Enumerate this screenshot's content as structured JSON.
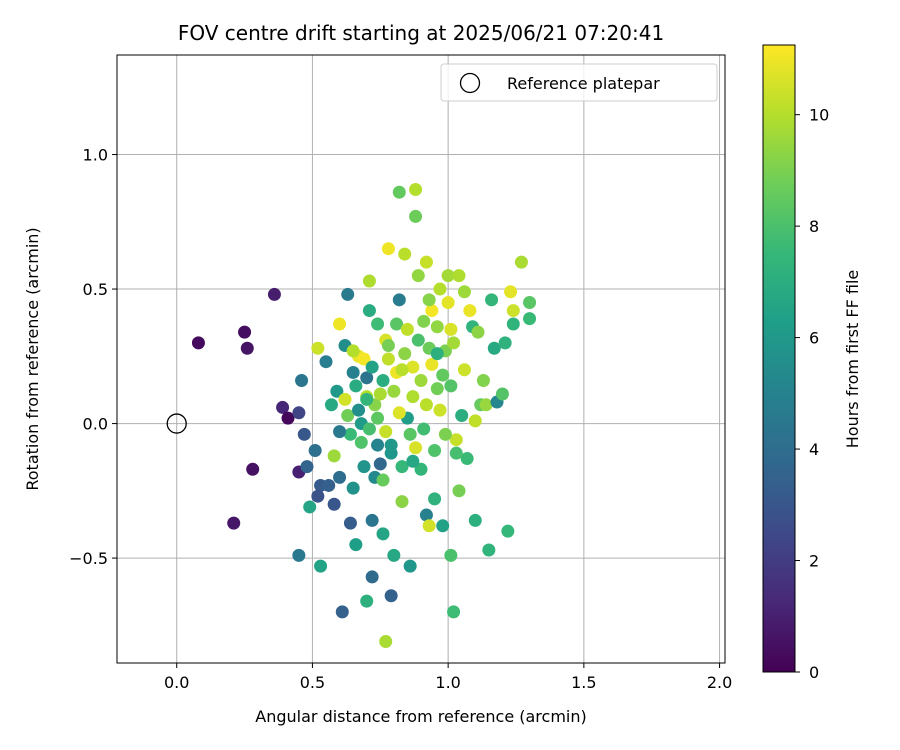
{
  "chart_data": {
    "type": "scatter",
    "title": "FOV centre drift starting at 2025/06/21 07:20:41",
    "xlabel": "Angular distance from reference (arcmin)",
    "ylabel": "Rotation from reference (arcmin)",
    "xlim": [
      -0.22,
      2.02
    ],
    "ylim": [
      -0.89,
      1.37
    ],
    "xticks": [
      0.0,
      0.5,
      1.0,
      1.5,
      2.0
    ],
    "xtick_labels": [
      "0.0",
      "0.5",
      "1.0",
      "1.5",
      "2.0"
    ],
    "yticks": [
      -0.5,
      0.0,
      0.5,
      1.0
    ],
    "ytick_labels": [
      "−0.5",
      "0.0",
      "0.5",
      "1.0"
    ],
    "grid": true,
    "legend": {
      "position": "top-right",
      "entries": [
        {
          "label": "Reference platepar",
          "marker": "open-circle"
        }
      ]
    },
    "reference_point": {
      "x": 0.0,
      "y": 0.0
    },
    "colorbar": {
      "label": "Hours from first FF file",
      "colormap": "viridis",
      "range": [
        0,
        11.25
      ],
      "ticks": [
        0,
        2,
        4,
        6,
        8,
        10
      ],
      "tick_labels": [
        "0",
        "2",
        "4",
        "6",
        "8",
        "10"
      ]
    },
    "points": [
      {
        "x": 0.08,
        "y": 0.3,
        "h": 0.3
      },
      {
        "x": 0.25,
        "y": 0.34,
        "h": 0.4
      },
      {
        "x": 0.26,
        "y": 0.28,
        "h": 0.6
      },
      {
        "x": 0.36,
        "y": 0.48,
        "h": 0.9
      },
      {
        "x": 0.39,
        "y": 0.06,
        "h": 1.2
      },
      {
        "x": 0.41,
        "y": 0.02,
        "h": 0.2
      },
      {
        "x": 0.28,
        "y": -0.17,
        "h": 0.5
      },
      {
        "x": 0.21,
        "y": -0.37,
        "h": 0.7
      },
      {
        "x": 0.45,
        "y": -0.18,
        "h": 1.0
      },
      {
        "x": 0.45,
        "y": 0.04,
        "h": 2.3
      },
      {
        "x": 0.47,
        "y": -0.04,
        "h": 3.1
      },
      {
        "x": 0.46,
        "y": 0.16,
        "h": 4.4
      },
      {
        "x": 0.45,
        "y": -0.49,
        "h": 4.5
      },
      {
        "x": 0.48,
        "y": -0.16,
        "h": 3.6
      },
      {
        "x": 0.49,
        "y": -0.31,
        "h": 6.6
      },
      {
        "x": 0.51,
        "y": -0.1,
        "h": 4.2
      },
      {
        "x": 0.53,
        "y": -0.23,
        "h": 3.2
      },
      {
        "x": 0.52,
        "y": -0.27,
        "h": 2.8
      },
      {
        "x": 0.53,
        "y": -0.53,
        "h": 6.5
      },
      {
        "x": 0.52,
        "y": 0.28,
        "h": 10.4
      },
      {
        "x": 0.55,
        "y": 0.23,
        "h": 4.8
      },
      {
        "x": 0.56,
        "y": -0.23,
        "h": 3.4
      },
      {
        "x": 0.57,
        "y": 0.07,
        "h": 6.8
      },
      {
        "x": 0.58,
        "y": -0.3,
        "h": 3.0
      },
      {
        "x": 0.58,
        "y": -0.12,
        "h": 9.6
      },
      {
        "x": 0.59,
        "y": 0.12,
        "h": 6.0
      },
      {
        "x": 0.6,
        "y": -0.2,
        "h": 4.0
      },
      {
        "x": 0.61,
        "y": -0.7,
        "h": 3.5
      },
      {
        "x": 0.62,
        "y": 0.29,
        "h": 5.5
      },
      {
        "x": 0.63,
        "y": 0.48,
        "h": 4.6
      },
      {
        "x": 0.64,
        "y": -0.37,
        "h": 3.3
      },
      {
        "x": 0.65,
        "y": -0.24,
        "h": 5.7
      },
      {
        "x": 0.65,
        "y": 0.19,
        "h": 4.9
      },
      {
        "x": 0.66,
        "y": -0.45,
        "h": 6.3
      },
      {
        "x": 0.67,
        "y": 0.25,
        "h": 10.9
      },
      {
        "x": 0.68,
        "y": 0.0,
        "h": 6.1
      },
      {
        "x": 0.69,
        "y": -0.16,
        "h": 5.8
      },
      {
        "x": 0.7,
        "y": -0.66,
        "h": 7.1
      },
      {
        "x": 0.7,
        "y": 0.17,
        "h": 4.3
      },
      {
        "x": 0.71,
        "y": 0.42,
        "h": 6.9
      },
      {
        "x": 0.71,
        "y": 0.53,
        "h": 9.9
      },
      {
        "x": 0.72,
        "y": -0.57,
        "h": 3.9
      },
      {
        "x": 0.72,
        "y": -0.36,
        "h": 4.4
      },
      {
        "x": 0.73,
        "y": 0.07,
        "h": 9.2
      },
      {
        "x": 0.74,
        "y": -0.08,
        "h": 5.1
      },
      {
        "x": 0.75,
        "y": -0.15,
        "h": 3.7
      },
      {
        "x": 0.76,
        "y": -0.41,
        "h": 6.6
      },
      {
        "x": 0.77,
        "y": 0.31,
        "h": 10.6
      },
      {
        "x": 0.77,
        "y": -0.81,
        "h": 9.8
      },
      {
        "x": 0.78,
        "y": 0.65,
        "h": 11.0
      },
      {
        "x": 0.78,
        "y": 0.24,
        "h": 10.2
      },
      {
        "x": 0.79,
        "y": -0.64,
        "h": 3.5
      },
      {
        "x": 0.79,
        "y": -0.11,
        "h": 5.9
      },
      {
        "x": 0.8,
        "y": -0.49,
        "h": 6.7
      },
      {
        "x": 0.81,
        "y": 0.37,
        "h": 8.3
      },
      {
        "x": 0.82,
        "y": 0.86,
        "h": 8.5
      },
      {
        "x": 0.82,
        "y": 0.46,
        "h": 4.7
      },
      {
        "x": 0.83,
        "y": -0.29,
        "h": 9.3
      },
      {
        "x": 0.84,
        "y": 0.63,
        "h": 10.1
      },
      {
        "x": 0.85,
        "y": 0.02,
        "h": 6.2
      },
      {
        "x": 0.86,
        "y": -0.53,
        "h": 5.9
      },
      {
        "x": 0.87,
        "y": 0.21,
        "h": 10.7
      },
      {
        "x": 0.88,
        "y": 0.87,
        "h": 10.0
      },
      {
        "x": 0.88,
        "y": 0.77,
        "h": 8.7
      },
      {
        "x": 0.89,
        "y": 0.55,
        "h": 9.4
      },
      {
        "x": 0.9,
        "y": -0.17,
        "h": 7.4
      },
      {
        "x": 0.91,
        "y": 0.38,
        "h": 9.1
      },
      {
        "x": 0.92,
        "y": -0.34,
        "h": 4.9
      },
      {
        "x": 0.92,
        "y": 0.6,
        "h": 10.3
      },
      {
        "x": 0.93,
        "y": -0.38,
        "h": 10.5
      },
      {
        "x": 0.94,
        "y": 0.42,
        "h": 11.1
      },
      {
        "x": 0.95,
        "y": -0.28,
        "h": 7.2
      },
      {
        "x": 0.96,
        "y": 0.13,
        "h": 8.8
      },
      {
        "x": 0.97,
        "y": 0.5,
        "h": 10.0
      },
      {
        "x": 0.98,
        "y": -0.38,
        "h": 6.4
      },
      {
        "x": 0.99,
        "y": 0.27,
        "h": 9.0
      },
      {
        "x": 1.0,
        "y": 0.55,
        "h": 9.7
      },
      {
        "x": 1.01,
        "y": -0.49,
        "h": 8.0
      },
      {
        "x": 1.01,
        "y": 0.35,
        "h": 10.6
      },
      {
        "x": 1.02,
        "y": -0.7,
        "h": 7.7
      },
      {
        "x": 1.03,
        "y": -0.06,
        "h": 10.3
      },
      {
        "x": 1.04,
        "y": 0.55,
        "h": 9.9
      },
      {
        "x": 1.04,
        "y": -0.25,
        "h": 8.9
      },
      {
        "x": 1.05,
        "y": 0.03,
        "h": 7.0
      },
      {
        "x": 1.06,
        "y": 0.49,
        "h": 9.6
      },
      {
        "x": 1.06,
        "y": 0.2,
        "h": 10.4
      },
      {
        "x": 1.07,
        "y": -0.13,
        "h": 7.6
      },
      {
        "x": 1.08,
        "y": 0.42,
        "h": 10.9
      },
      {
        "x": 1.09,
        "y": 0.36,
        "h": 7.3
      },
      {
        "x": 1.1,
        "y": 0.01,
        "h": 10.2
      },
      {
        "x": 1.1,
        "y": -0.36,
        "h": 7.1
      },
      {
        "x": 1.11,
        "y": 0.34,
        "h": 9.3
      },
      {
        "x": 1.12,
        "y": 0.07,
        "h": 8.6
      },
      {
        "x": 1.13,
        "y": 0.16,
        "h": 9.1
      },
      {
        "x": 1.14,
        "y": 0.07,
        "h": 9.5
      },
      {
        "x": 1.15,
        "y": -0.47,
        "h": 7.3
      },
      {
        "x": 1.16,
        "y": 0.46,
        "h": 7.4
      },
      {
        "x": 1.17,
        "y": 0.28,
        "h": 6.8
      },
      {
        "x": 1.18,
        "y": 0.08,
        "h": 5.2
      },
      {
        "x": 1.2,
        "y": 0.11,
        "h": 8.2
      },
      {
        "x": 1.21,
        "y": 0.3,
        "h": 7.2
      },
      {
        "x": 1.22,
        "y": -0.4,
        "h": 7.5
      },
      {
        "x": 1.23,
        "y": 0.49,
        "h": 10.8
      },
      {
        "x": 1.24,
        "y": 0.37,
        "h": 7.3
      },
      {
        "x": 1.24,
        "y": 0.42,
        "h": 10.4
      },
      {
        "x": 1.27,
        "y": 0.6,
        "h": 9.8
      },
      {
        "x": 1.3,
        "y": 0.39,
        "h": 7.6
      },
      {
        "x": 1.3,
        "y": 0.45,
        "h": 8.3
      },
      {
        "x": 0.6,
        "y": 0.37,
        "h": 11.0
      },
      {
        "x": 0.62,
        "y": 0.09,
        "h": 10.5
      },
      {
        "x": 0.63,
        "y": 0.03,
        "h": 8.8
      },
      {
        "x": 0.64,
        "y": -0.04,
        "h": 7.6
      },
      {
        "x": 0.66,
        "y": 0.14,
        "h": 6.9
      },
      {
        "x": 0.67,
        "y": 0.05,
        "h": 5.6
      },
      {
        "x": 0.68,
        "y": -0.07,
        "h": 8.1
      },
      {
        "x": 0.69,
        "y": 0.24,
        "h": 11.1
      },
      {
        "x": 0.7,
        "y": 0.1,
        "h": 10.0
      },
      {
        "x": 0.71,
        "y": -0.02,
        "h": 7.9
      },
      {
        "x": 0.72,
        "y": 0.21,
        "h": 6.5
      },
      {
        "x": 0.73,
        "y": -0.2,
        "h": 5.3
      },
      {
        "x": 0.74,
        "y": 0.02,
        "h": 8.4
      },
      {
        "x": 0.75,
        "y": 0.11,
        "h": 9.8
      },
      {
        "x": 0.76,
        "y": 0.16,
        "h": 7.0
      },
      {
        "x": 0.77,
        "y": -0.03,
        "h": 10.3
      },
      {
        "x": 0.78,
        "y": 0.29,
        "h": 8.9
      },
      {
        "x": 0.79,
        "y": -0.08,
        "h": 6.0
      },
      {
        "x": 0.8,
        "y": 0.12,
        "h": 9.5
      },
      {
        "x": 0.81,
        "y": 0.19,
        "h": 11.0
      },
      {
        "x": 0.82,
        "y": 0.04,
        "h": 10.7
      },
      {
        "x": 0.83,
        "y": -0.16,
        "h": 7.5
      },
      {
        "x": 0.84,
        "y": 0.26,
        "h": 9.3
      },
      {
        "x": 0.85,
        "y": 0.35,
        "h": 10.2
      },
      {
        "x": 0.86,
        "y": -0.04,
        "h": 8.3
      },
      {
        "x": 0.87,
        "y": 0.1,
        "h": 9.9
      },
      {
        "x": 0.88,
        "y": -0.09,
        "h": 10.6
      },
      {
        "x": 0.89,
        "y": 0.31,
        "h": 8.0
      },
      {
        "x": 0.9,
        "y": 0.16,
        "h": 9.6
      },
      {
        "x": 0.91,
        "y": -0.02,
        "h": 7.8
      },
      {
        "x": 0.92,
        "y": 0.07,
        "h": 10.1
      },
      {
        "x": 0.93,
        "y": 0.28,
        "h": 8.7
      },
      {
        "x": 0.94,
        "y": 0.22,
        "h": 10.9
      },
      {
        "x": 0.95,
        "y": -0.1,
        "h": 8.1
      },
      {
        "x": 0.96,
        "y": 0.36,
        "h": 9.4
      },
      {
        "x": 0.97,
        "y": 0.05,
        "h": 10.4
      },
      {
        "x": 0.98,
        "y": 0.18,
        "h": 8.5
      },
      {
        "x": 0.99,
        "y": -0.04,
        "h": 9.0
      },
      {
        "x": 1.0,
        "y": 0.45,
        "h": 10.8
      },
      {
        "x": 1.01,
        "y": 0.14,
        "h": 8.2
      },
      {
        "x": 1.02,
        "y": 0.3,
        "h": 9.7
      },
      {
        "x": 1.03,
        "y": -0.11,
        "h": 7.9
      },
      {
        "x": 0.65,
        "y": 0.27,
        "h": 10.0
      },
      {
        "x": 0.74,
        "y": 0.37,
        "h": 7.7
      },
      {
        "x": 0.83,
        "y": 0.2,
        "h": 10.1
      },
      {
        "x": 0.93,
        "y": 0.46,
        "h": 9.2
      },
      {
        "x": 0.7,
        "y": 0.09,
        "h": 7.4
      },
      {
        "x": 0.87,
        "y": -0.14,
        "h": 6.7
      },
      {
        "x": 0.76,
        "y": -0.21,
        "h": 8.6
      },
      {
        "x": 0.96,
        "y": 0.26,
        "h": 7.1
      },
      {
        "x": 0.6,
        "y": -0.03,
        "h": 4.5
      }
    ]
  }
}
